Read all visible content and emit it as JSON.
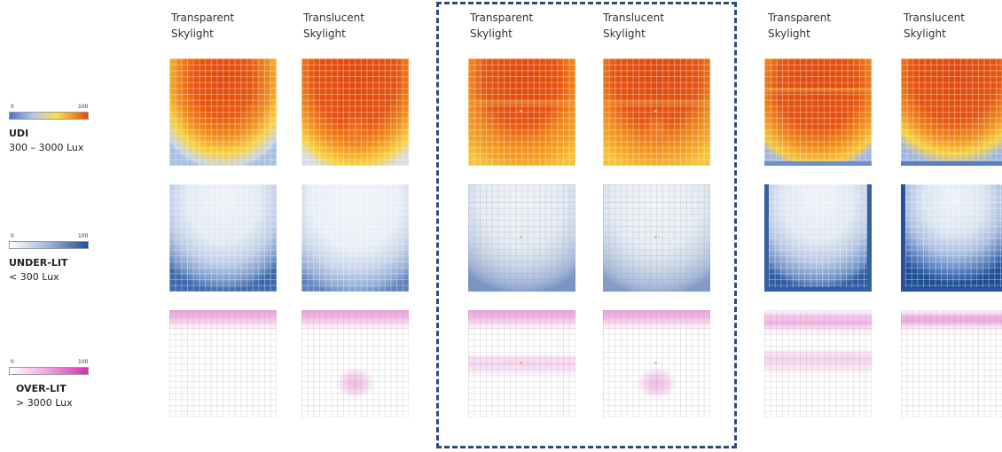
{
  "legends": [
    {
      "key": "udi",
      "min": "0",
      "max": "100",
      "title": "UDI",
      "range": "300 – 3000 Lux",
      "colors": [
        "#4a74c9",
        "#f6e04a",
        "#e04a10"
      ]
    },
    {
      "key": "underlit",
      "min": "0",
      "max": "100",
      "title": "UNDER-LIT",
      "range": "< 300 Lux",
      "colors": [
        "#ffffff",
        "#1f4f93"
      ]
    },
    {
      "key": "overlit",
      "min": "0",
      "max": "100",
      "title": "OVER-LIT",
      "range": "> 3000 Lux",
      "colors": [
        "#ffffff",
        "#d62fb3"
      ]
    }
  ],
  "columns": [
    {
      "line1": "Transparent",
      "line2": "Skylight"
    },
    {
      "line1": "Translucent",
      "line2": "Skylight"
    },
    {
      "line1": "Transparent",
      "line2": "Skylight"
    },
    {
      "line1": "Translucent",
      "line2": "Skylight"
    },
    {
      "line1": "Transparent",
      "line2": "Skylight"
    },
    {
      "line1": "Translucent",
      "line2": "Skylight"
    }
  ]
}
